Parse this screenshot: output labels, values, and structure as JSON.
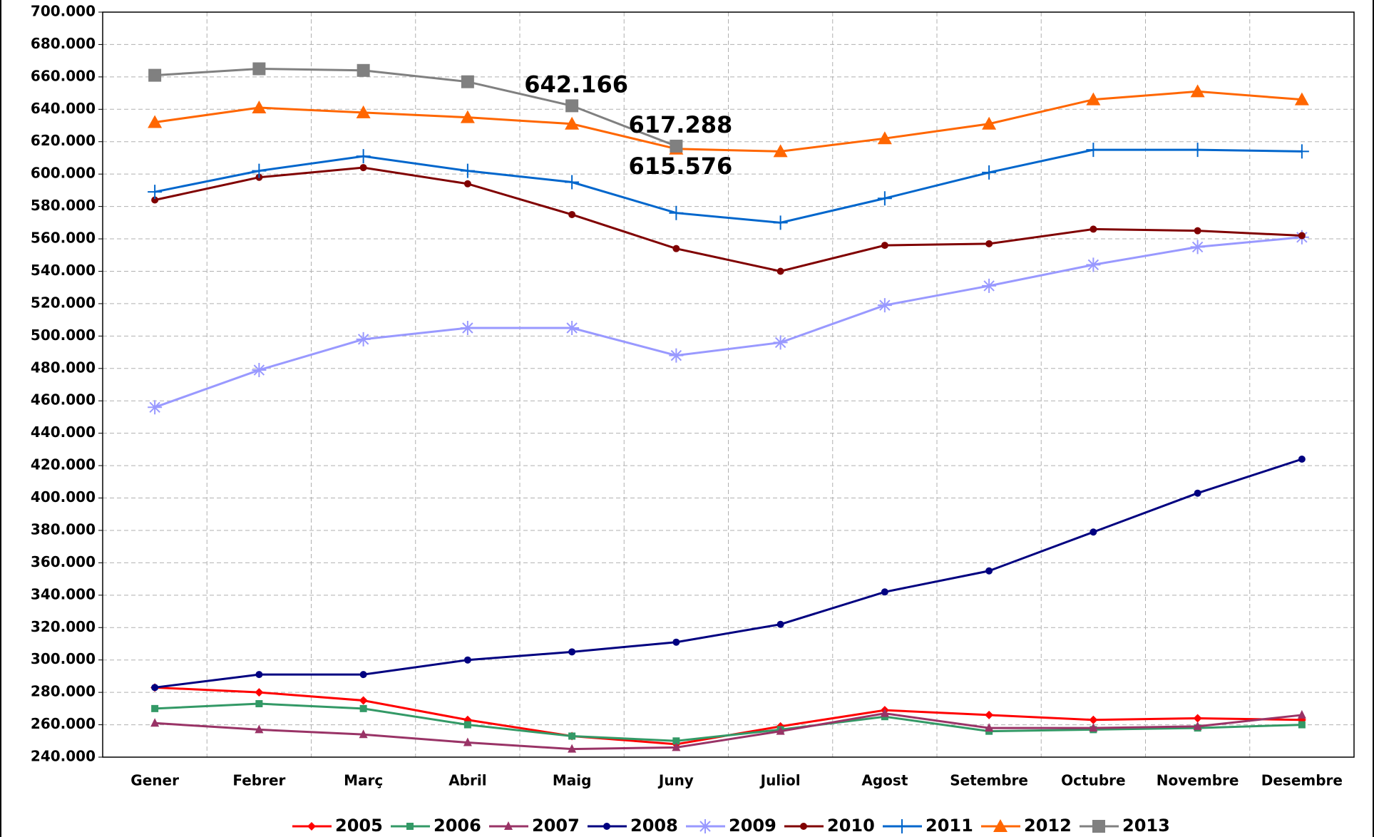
{
  "chart_data": {
    "type": "line",
    "categories": [
      "Gener",
      "Febrer",
      "Març",
      "Abril",
      "Maig",
      "Juny",
      "Juliol",
      "Agost",
      "Setembre",
      "Octubre",
      "Novembre",
      "Desembre"
    ],
    "ylim": [
      240000,
      700000
    ],
    "yticks": [
      {
        "value": 240000,
        "label": "240.000"
      },
      {
        "value": 260000,
        "label": "260.000"
      },
      {
        "value": 280000,
        "label": "280.000"
      },
      {
        "value": 300000,
        "label": "300.000"
      },
      {
        "value": 320000,
        "label": "320.000"
      },
      {
        "value": 340000,
        "label": "340.000"
      },
      {
        "value": 360000,
        "label": "360.000"
      },
      {
        "value": 380000,
        "label": "380.000"
      },
      {
        "value": 400000,
        "label": "400.000"
      },
      {
        "value": 420000,
        "label": "420.000"
      },
      {
        "value": 440000,
        "label": "440.000"
      },
      {
        "value": 460000,
        "label": "460.000"
      },
      {
        "value": 480000,
        "label": "480.000"
      },
      {
        "value": 500000,
        "label": "500.000"
      },
      {
        "value": 520000,
        "label": "520.000"
      },
      {
        "value": 540000,
        "label": "540.000"
      },
      {
        "value": 560000,
        "label": "560.000"
      },
      {
        "value": 580000,
        "label": "580.000"
      },
      {
        "value": 600000,
        "label": "600.000"
      },
      {
        "value": 620000,
        "label": "620.000"
      },
      {
        "value": 640000,
        "label": "640.000"
      },
      {
        "value": 660000,
        "label": "660.000"
      },
      {
        "value": 680000,
        "label": "680.000"
      },
      {
        "value": 700000,
        "label": "700.000"
      }
    ],
    "grid": true,
    "legend": "bottom",
    "series": [
      {
        "name": "2005",
        "color": "#ff0000",
        "marker": "diamond",
        "values": [
          283000,
          280000,
          275000,
          263000,
          253000,
          248000,
          259000,
          269000,
          266000,
          263000,
          264000,
          263000
        ]
      },
      {
        "name": "2006",
        "color": "#339966",
        "marker": "square",
        "values": [
          270000,
          273000,
          270000,
          260000,
          253000,
          250000,
          257000,
          265000,
          256000,
          257000,
          258000,
          260000
        ]
      },
      {
        "name": "2007",
        "color": "#993366",
        "marker": "triangle",
        "values": [
          261000,
          257000,
          254000,
          249000,
          245000,
          246000,
          256000,
          267000,
          258000,
          258000,
          259000,
          266000
        ]
      },
      {
        "name": "2008",
        "color": "#000080",
        "marker": "circle",
        "values": [
          283000,
          291000,
          291000,
          300000,
          305000,
          311000,
          322000,
          342000,
          355000,
          379000,
          403000,
          424000
        ]
      },
      {
        "name": "2009",
        "color": "#9999ff",
        "marker": "star",
        "values": [
          456000,
          479000,
          498000,
          505000,
          505000,
          488000,
          496000,
          519000,
          531000,
          544000,
          555000,
          561000
        ]
      },
      {
        "name": "2010",
        "color": "#800000",
        "marker": "circle",
        "values": [
          584000,
          598000,
          604000,
          594000,
          575000,
          554000,
          540000,
          556000,
          557000,
          566000,
          565000,
          562000
        ]
      },
      {
        "name": "2011",
        "color": "#0066cc",
        "marker": "plus",
        "values": [
          589000,
          602000,
          611000,
          602000,
          595000,
          576000,
          570000,
          585000,
          601000,
          615000,
          615000,
          614000
        ]
      },
      {
        "name": "2012",
        "color": "#ff6600",
        "marker": "triangle-big",
        "values": [
          632000,
          641000,
          638000,
          635000,
          631000,
          615576,
          614000,
          622000,
          631000,
          646000,
          651000,
          646000
        ],
        "value_labels": [
          null,
          null,
          null,
          null,
          null,
          "615.576",
          null,
          null,
          null,
          null,
          null,
          null
        ]
      },
      {
        "name": "2013",
        "color": "#808080",
        "marker": "square-big",
        "values": [
          661000,
          665000,
          664000,
          657000,
          642166,
          617288,
          null,
          null,
          null,
          null,
          null,
          null
        ],
        "value_labels": [
          null,
          null,
          null,
          null,
          "642.166",
          "617.288",
          null,
          null,
          null,
          null,
          null,
          null
        ]
      }
    ]
  }
}
